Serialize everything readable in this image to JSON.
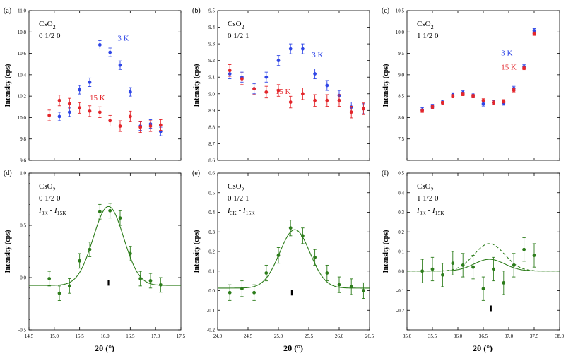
{
  "colors": {
    "blue": "#2f46e6",
    "red": "#e3262b",
    "green": "#2d7d1b",
    "axis": "#000000"
  },
  "shared_xlabel": "2θ (°)",
  "chart_data": [
    {
      "id": "a",
      "type": "scatter",
      "panel_label": "(a)",
      "ylabel": "Intensity (cps)",
      "xlabel": "",
      "annotation": {
        "compound": "CsO",
        "subscript": "2",
        "hkl": "0 1/2 0"
      },
      "xlim": [
        14.5,
        17.5
      ],
      "ylim": [
        9.6,
        11.0
      ],
      "yticks": [
        9.6,
        9.8,
        10.0,
        10.2,
        10.4,
        10.6,
        10.8,
        11.0
      ],
      "ytick_labels": [
        "9.6",
        "9.8",
        "10.0",
        "10.2",
        "10.4",
        "10.6",
        "10.8",
        "11.0"
      ],
      "xticks": [
        14.5,
        15.0,
        15.5,
        16.0,
        16.5,
        17.0,
        17.5
      ],
      "show_xtick_labels": false,
      "series": [
        {
          "name": "3 K",
          "color": "blue",
          "label_pos": [
            16.25,
            10.72
          ],
          "x": [
            15.1,
            15.3,
            15.5,
            15.7,
            15.9,
            16.1,
            16.3,
            16.5,
            16.7,
            16.9,
            17.1
          ],
          "y": [
            10.01,
            10.05,
            10.26,
            10.33,
            10.68,
            10.61,
            10.49,
            10.24,
            9.92,
            9.94,
            9.87
          ],
          "err": [
            0.04,
            0.04,
            0.04,
            0.04,
            0.04,
            0.04,
            0.04,
            0.04,
            0.04,
            0.04,
            0.04
          ]
        },
        {
          "name": "15 K",
          "color": "red",
          "label_pos": [
            15.7,
            10.16
          ],
          "x": [
            14.9,
            15.1,
            15.3,
            15.5,
            15.7,
            15.9,
            16.1,
            16.3,
            16.5,
            16.7,
            16.9,
            17.1
          ],
          "y": [
            10.02,
            10.16,
            10.13,
            10.09,
            10.06,
            10.05,
            9.97,
            9.92,
            10.01,
            9.91,
            9.92,
            9.93
          ],
          "err": [
            0.05,
            0.05,
            0.05,
            0.05,
            0.05,
            0.05,
            0.05,
            0.05,
            0.05,
            0.05,
            0.05,
            0.05
          ]
        }
      ]
    },
    {
      "id": "b",
      "type": "scatter",
      "panel_label": "(b)",
      "ylabel": "Intensity (cps)",
      "xlabel": "",
      "annotation": {
        "compound": "CsO",
        "subscript": "2",
        "hkl": "0 1/2 1"
      },
      "xlim": [
        24.0,
        26.5
      ],
      "ylim": [
        8.6,
        9.5
      ],
      "yticks": [
        8.6,
        8.7,
        8.8,
        8.9,
        9.0,
        9.1,
        9.2,
        9.3,
        9.4,
        9.5
      ],
      "ytick_labels": [
        "8.6",
        "8.7",
        "8.8",
        "8.9",
        "9.0",
        "9.1",
        "9.2",
        "9.3",
        "9.4",
        "9.5"
      ],
      "xticks": [
        24.0,
        24.5,
        25.0,
        25.5,
        26.0,
        26.5
      ],
      "show_xtick_labels": false,
      "series": [
        {
          "name": "3 K",
          "color": "blue",
          "label_pos": [
            25.55,
            9.22
          ],
          "x": [
            24.2,
            24.4,
            24.6,
            24.8,
            25.0,
            25.2,
            25.4,
            25.6,
            25.8,
            26.0,
            26.2,
            26.4
          ],
          "y": [
            9.12,
            9.1,
            9.03,
            9.1,
            9.2,
            9.27,
            9.27,
            9.12,
            9.05,
            8.99,
            8.92,
            8.91
          ],
          "err": [
            0.03,
            0.03,
            0.03,
            0.03,
            0.03,
            0.03,
            0.03,
            0.03,
            0.03,
            0.03,
            0.03,
            0.03
          ]
        },
        {
          "name": "15 K",
          "color": "red",
          "label_pos": [
            24.95,
            9.0
          ],
          "x": [
            24.2,
            24.4,
            24.6,
            24.8,
            25.0,
            25.2,
            25.4,
            25.6,
            25.8,
            26.0,
            26.2,
            26.4
          ],
          "y": [
            9.14,
            9.09,
            9.03,
            9.01,
            9.02,
            8.95,
            9.0,
            8.96,
            8.96,
            8.96,
            8.89,
            8.91
          ],
          "err": [
            0.035,
            0.035,
            0.035,
            0.035,
            0.035,
            0.035,
            0.035,
            0.035,
            0.035,
            0.035,
            0.035,
            0.035
          ]
        }
      ]
    },
    {
      "id": "c",
      "type": "scatter",
      "panel_label": "(c)",
      "ylabel": "Intensity (cps)",
      "xlabel": "",
      "annotation": {
        "compound": "CsO",
        "subscript": "2",
        "hkl": "1 1/2 0"
      },
      "xlim": [
        35.0,
        38.0
      ],
      "ylim": [
        7.0,
        10.5
      ],
      "yticks": [
        7.0,
        7.5,
        8.0,
        8.5,
        9.0,
        9.5,
        10.0,
        10.5
      ],
      "ytick_labels": [
        "",
        "7.5",
        "8.0",
        "8.5",
        "9.0",
        "9.5",
        "10.0",
        "10.5"
      ],
      "xticks": [
        35.0,
        35.5,
        36.0,
        36.5,
        37.0,
        37.5,
        38.0
      ],
      "show_xtick_labels": false,
      "series": [
        {
          "name": "3 K",
          "color": "blue",
          "label_pos": [
            36.85,
            9.45
          ],
          "x": [
            35.3,
            35.5,
            35.7,
            35.9,
            36.1,
            36.3,
            36.5,
            36.7,
            36.9,
            37.1,
            37.3,
            37.5
          ],
          "y": [
            8.18,
            8.26,
            8.35,
            8.53,
            8.58,
            8.52,
            8.32,
            8.35,
            8.34,
            8.68,
            9.19,
            10.03
          ],
          "err": [
            0.05,
            0.05,
            0.05,
            0.05,
            0.05,
            0.05,
            0.05,
            0.05,
            0.05,
            0.05,
            0.05,
            0.05
          ]
        },
        {
          "name": "15 K",
          "color": "red",
          "label_pos": [
            36.85,
            9.12
          ],
          "x": [
            35.3,
            35.5,
            35.7,
            35.9,
            36.1,
            36.3,
            36.5,
            36.7,
            36.9,
            37.1,
            37.3,
            37.5
          ],
          "y": [
            8.16,
            8.24,
            8.34,
            8.5,
            8.55,
            8.5,
            8.4,
            8.35,
            8.38,
            8.64,
            9.16,
            9.96
          ],
          "err": [
            0.04,
            0.04,
            0.04,
            0.04,
            0.04,
            0.04,
            0.04,
            0.04,
            0.04,
            0.04,
            0.04,
            0.04
          ]
        }
      ]
    },
    {
      "id": "d",
      "type": "scatter",
      "panel_label": "(d)",
      "ylabel": "Intensity (cps)",
      "xlabel": "2θ (°)",
      "annotation": {
        "compound": "CsO",
        "subscript": "2",
        "hkl": "0 1/2 0",
        "diff_main": "I",
        "diff_sub1": "3K",
        "diff_mid": " - ",
        "diff_main2": "I",
        "diff_sub2": "15K"
      },
      "xlim": [
        14.5,
        17.5
      ],
      "ylim": [
        -0.5,
        1.0
      ],
      "yticks": [
        -0.5,
        0.0,
        0.5,
        1.0
      ],
      "ytick_labels": [
        "-0.5",
        "0.0",
        "0.5",
        "1.0"
      ],
      "minor_y": 0.1,
      "xticks": [
        14.5,
        15.0,
        15.5,
        16.0,
        16.5,
        17.0,
        17.5
      ],
      "xtick_labels": [
        "14.5",
        "15.0",
        "15.5",
        "16.0",
        "16.5",
        "17.0",
        "17.5"
      ],
      "show_xtick_labels": true,
      "marker": {
        "x": 16.07,
        "y": -0.05
      },
      "fit": {
        "amplitude": 0.755,
        "center": 16.07,
        "sigma": 0.3,
        "offset": -0.075
      },
      "series": [
        {
          "name": "difference",
          "color": "green",
          "x": [
            14.9,
            15.1,
            15.3,
            15.5,
            15.7,
            15.9,
            16.1,
            16.3,
            16.5,
            16.7,
            16.9,
            17.1
          ],
          "y": [
            -0.01,
            -0.15,
            -0.08,
            0.16,
            0.27,
            0.63,
            0.64,
            0.57,
            0.23,
            -0.01,
            -0.03,
            -0.07
          ],
          "err": [
            0.07,
            0.07,
            0.07,
            0.07,
            0.07,
            0.07,
            0.07,
            0.07,
            0.07,
            0.07,
            0.07,
            0.07
          ]
        }
      ]
    },
    {
      "id": "e",
      "type": "scatter",
      "panel_label": "(e)",
      "ylabel": "Intensity (cps)",
      "xlabel": "2θ (°)",
      "annotation": {
        "compound": "CsO",
        "subscript": "2",
        "hkl": "0 1/2 1",
        "diff_main": "I",
        "diff_sub1": "3K",
        "diff_mid": " - ",
        "diff_main2": "I",
        "diff_sub2": "15K"
      },
      "xlim": [
        24.0,
        26.5
      ],
      "ylim": [
        -0.2,
        0.6
      ],
      "yticks": [
        -0.2,
        -0.1,
        0.0,
        0.1,
        0.2,
        0.3,
        0.4,
        0.5,
        0.6
      ],
      "ytick_labels": [
        "-0.2",
        "-0.1",
        "0.0",
        "0.1",
        "0.2",
        "0.3",
        "0.4",
        "0.5",
        "0.6"
      ],
      "xticks": [
        24.0,
        24.5,
        25.0,
        25.5,
        26.0,
        26.5
      ],
      "xtick_labels": [
        "24.0",
        "24.5",
        "25.0",
        "25.5",
        "26.0",
        "26.5"
      ],
      "show_xtick_labels": true,
      "marker": {
        "x": 25.22,
        "y": -0.01
      },
      "fit": {
        "amplitude": 0.298,
        "center": 25.27,
        "sigma": 0.25,
        "offset": 0.013
      },
      "series": [
        {
          "name": "difference",
          "color": "green",
          "x": [
            24.2,
            24.4,
            24.6,
            24.8,
            25.0,
            25.2,
            25.4,
            25.6,
            25.8,
            26.0,
            26.2,
            26.4
          ],
          "y": [
            -0.01,
            0.01,
            -0.01,
            0.09,
            0.18,
            0.32,
            0.28,
            0.17,
            0.09,
            0.03,
            0.02,
            0.0
          ],
          "err": [
            0.04,
            0.04,
            0.04,
            0.04,
            0.04,
            0.04,
            0.04,
            0.04,
            0.04,
            0.04,
            0.04,
            0.04
          ]
        }
      ]
    },
    {
      "id": "f",
      "type": "scatter",
      "panel_label": "(f)",
      "ylabel": "Intensity (cps)",
      "xlabel": "2θ (°)",
      "annotation": {
        "compound": "CsO",
        "subscript": "2",
        "hkl": "1 1/2 0",
        "diff_main": "I",
        "diff_sub1": "3K",
        "diff_mid": " - ",
        "diff_main2": "I",
        "diff_sub2": "15K"
      },
      "xlim": [
        35.0,
        38.0
      ],
      "ylim": [
        -0.3,
        0.5
      ],
      "yticks": [
        -0.3,
        -0.2,
        -0.1,
        0.0,
        0.1,
        0.2,
        0.3,
        0.4,
        0.5
      ],
      "ytick_labels": [
        "",
        "-0.2",
        "-0.1",
        "0.0",
        "0.1",
        "0.2",
        "0.3",
        "0.4",
        "0.5"
      ],
      "xticks": [
        35.0,
        35.5,
        36.0,
        36.5,
        37.0,
        37.5,
        38.0
      ],
      "xtick_labels": [
        "35.0",
        "35.5",
        "36.0",
        "36.5",
        "37.0",
        "37.5",
        "38.0"
      ],
      "show_xtick_labels": true,
      "marker": {
        "x": 36.65,
        "y": -0.19
      },
      "fit": {
        "amplitude": 0.06,
        "center": 36.62,
        "sigma": 0.3,
        "offset": 0.0
      },
      "fit_dashed": {
        "amplitude": 0.14,
        "center": 36.62,
        "sigma": 0.3,
        "offset": 0.0
      },
      "series": [
        {
          "name": "difference",
          "color": "green",
          "x": [
            35.3,
            35.5,
            35.7,
            35.9,
            36.1,
            36.3,
            36.5,
            36.7,
            36.9,
            37.1,
            37.3,
            37.5
          ],
          "y": [
            0.0,
            0.01,
            -0.02,
            0.04,
            0.03,
            0.02,
            -0.09,
            0.01,
            -0.06,
            0.03,
            0.11,
            0.08
          ],
          "err": [
            0.06,
            0.06,
            0.06,
            0.06,
            0.06,
            0.06,
            0.06,
            0.06,
            0.06,
            0.06,
            0.06,
            0.06
          ]
        }
      ]
    }
  ]
}
